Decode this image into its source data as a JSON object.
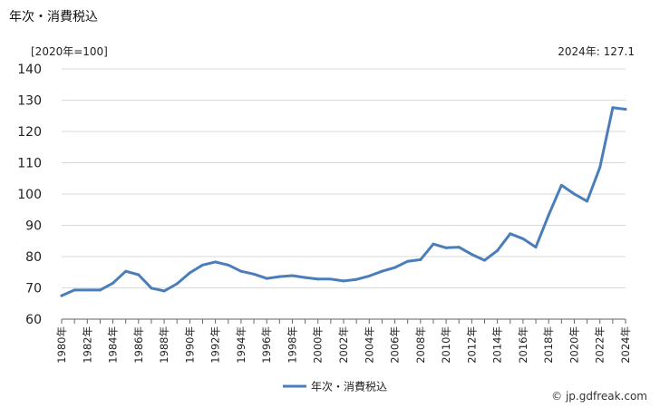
{
  "title": "年次・消費税込",
  "unit_label": "[2020年=100]",
  "latest_label": "2024年: 127.1",
  "source": "© jp.gdfreak.com",
  "colors": {
    "line": "#4a7ebb",
    "grid": "#d9d9d9",
    "axis": "#666666",
    "text": "#222222"
  },
  "chart_data": {
    "type": "line",
    "x": [
      "1980年",
      "1981年",
      "1982年",
      "1983年",
      "1984年",
      "1985年",
      "1986年",
      "1987年",
      "1988年",
      "1989年",
      "1990年",
      "1991年",
      "1992年",
      "1993年",
      "1994年",
      "1995年",
      "1996年",
      "1997年",
      "1998年",
      "1999年",
      "2000年",
      "2001年",
      "2002年",
      "2003年",
      "2004年",
      "2005年",
      "2006年",
      "2007年",
      "2008年",
      "2009年",
      "2010年",
      "2011年",
      "2012年",
      "2013年",
      "2014年",
      "2015年",
      "2016年",
      "2017年",
      "2018年",
      "2019年",
      "2020年",
      "2021年",
      "2022年",
      "2023年",
      "2024年"
    ],
    "x_tick_labels": [
      "1980年",
      "1982年",
      "1984年",
      "1986年",
      "1988年",
      "1990年",
      "1992年",
      "1994年",
      "1996年",
      "1998年",
      "2000年",
      "2002年",
      "2004年",
      "2006年",
      "2008年",
      "2010年",
      "2012年",
      "2014年",
      "2016年",
      "2018年",
      "2020年",
      "2022年",
      "2024年"
    ],
    "series": [
      {
        "name": "年次・消費税込",
        "values": [
          67.5,
          69.3,
          69.3,
          69.3,
          71.5,
          75.3,
          74.2,
          69.9,
          69.0,
          71.3,
          74.8,
          77.3,
          78.3,
          77.3,
          75.3,
          74.4,
          73.0,
          73.6,
          73.9,
          73.3,
          72.8,
          72.8,
          72.2,
          72.7,
          73.8,
          75.3,
          76.5,
          78.5,
          79.0,
          84.0,
          82.8,
          83.0,
          80.7,
          78.8,
          81.9,
          87.3,
          85.7,
          83.0,
          93.3,
          102.8,
          100.0,
          97.7,
          108.5,
          127.6,
          127.1
        ]
      }
    ],
    "y_ticks": [
      60,
      70,
      80,
      90,
      100,
      110,
      120,
      130,
      140
    ],
    "ylim": [
      60,
      140
    ],
    "grid": true,
    "legend": "bottom-center"
  }
}
